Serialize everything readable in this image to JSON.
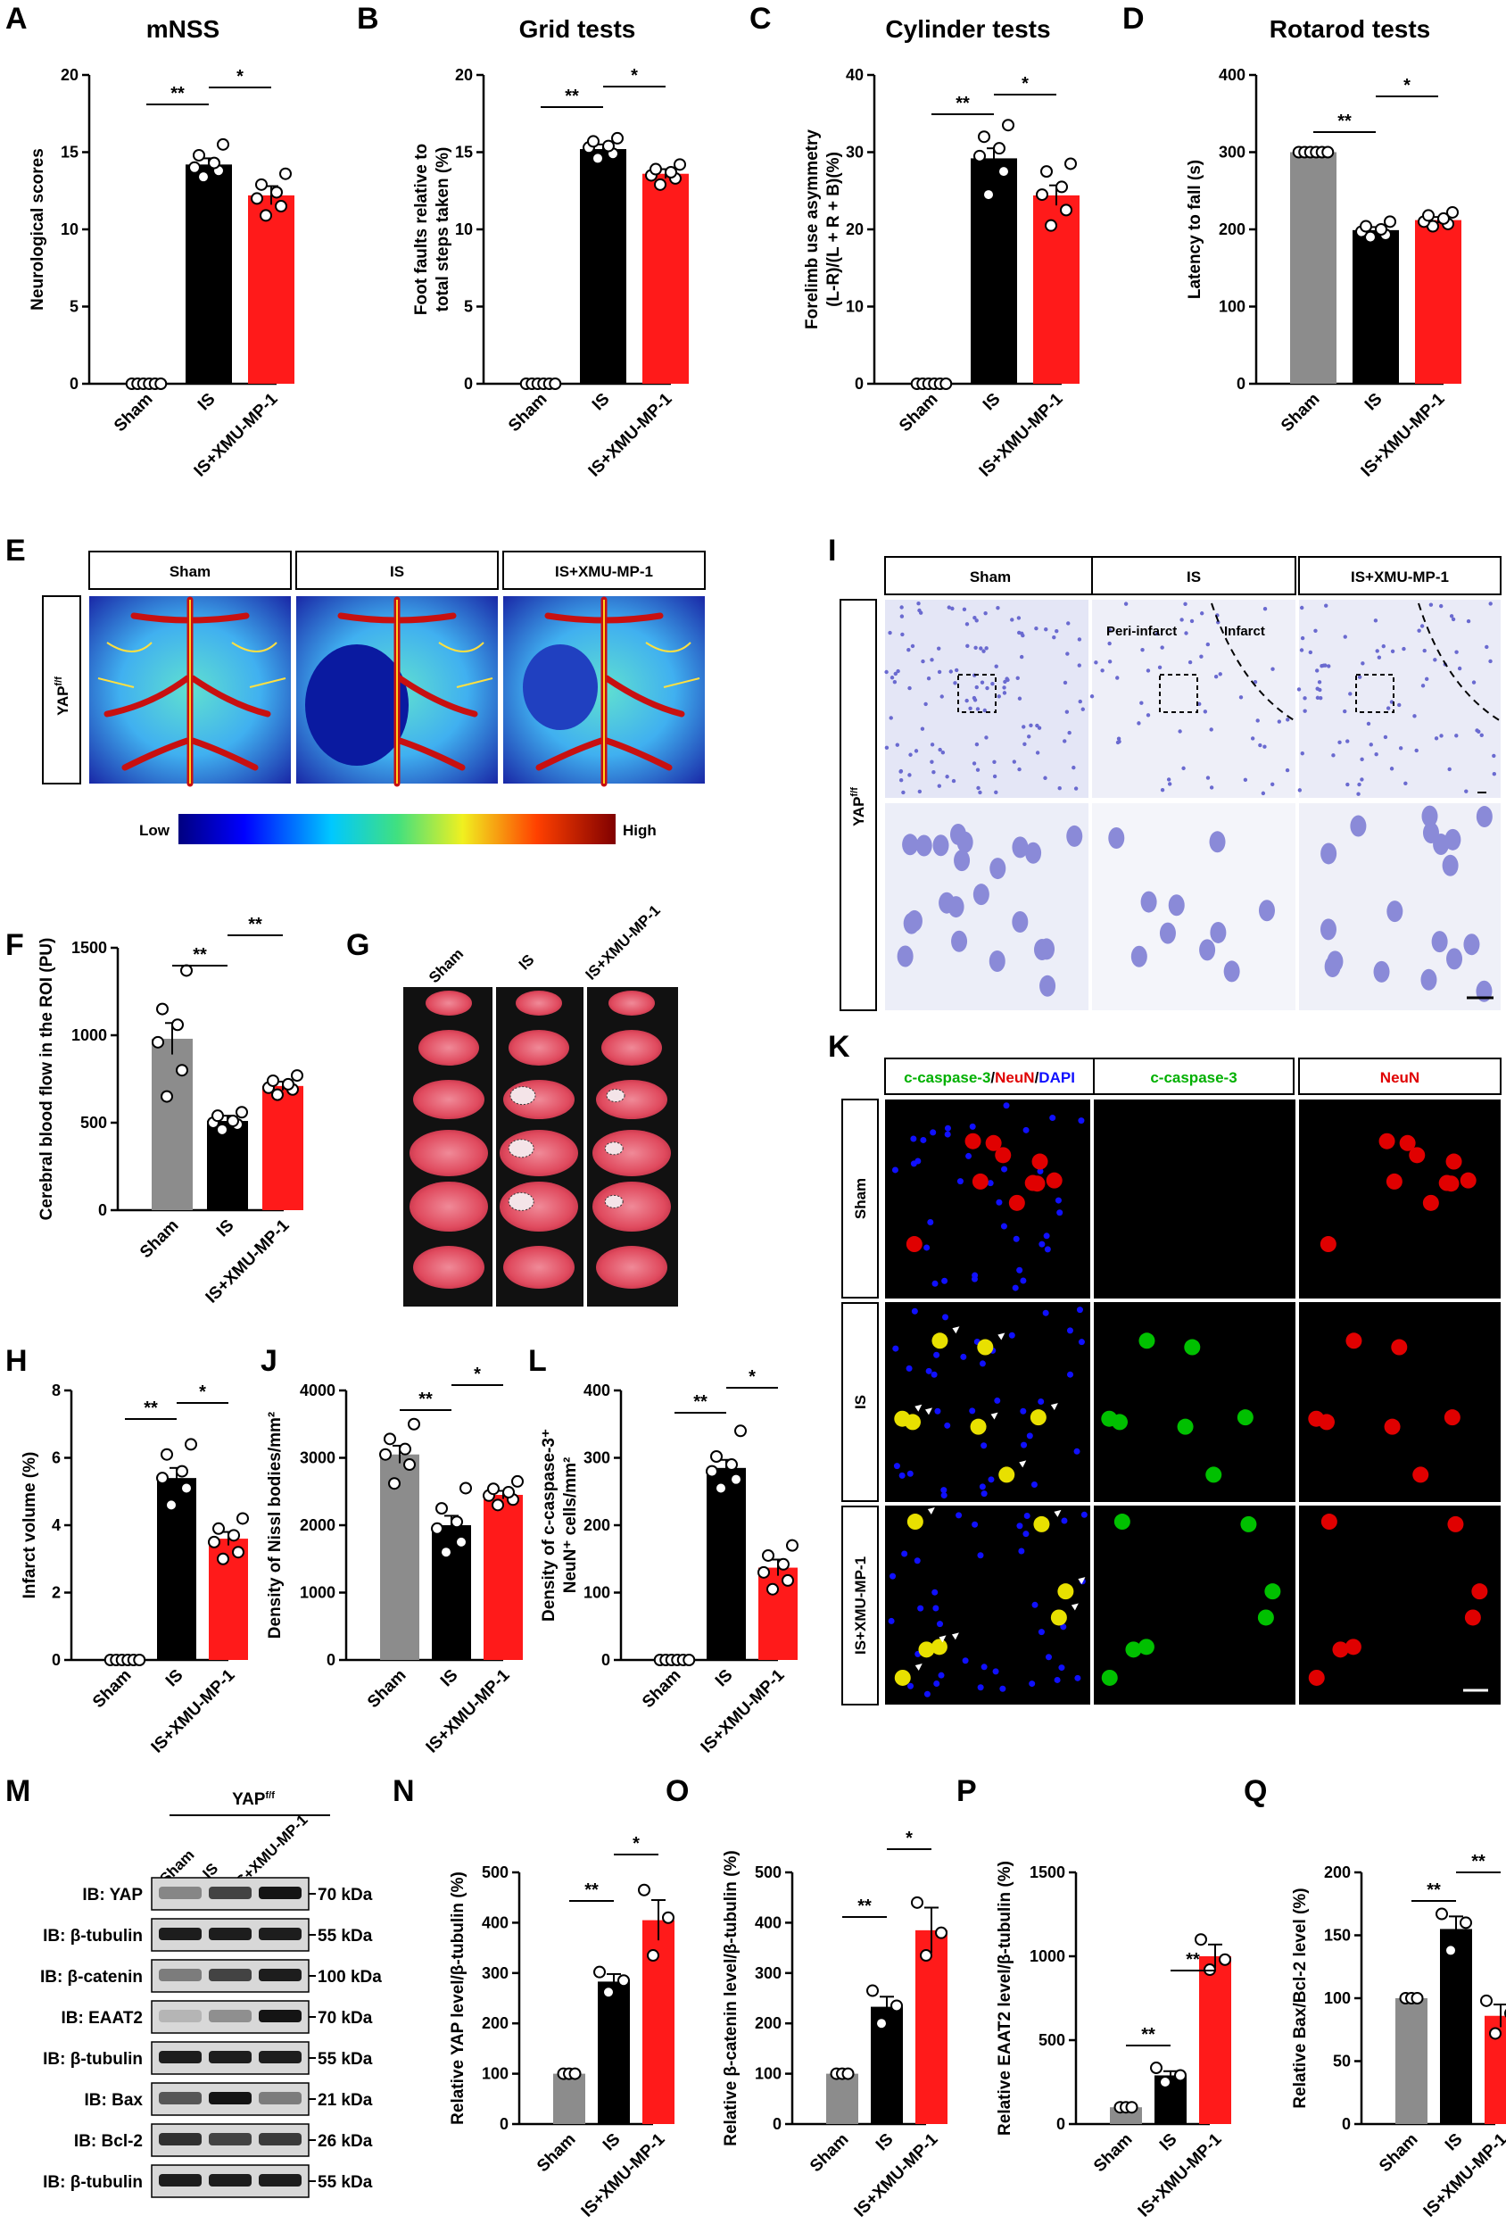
{
  "categories": [
    "Sham",
    "IS",
    "IS+XMU-MP-1"
  ],
  "colors": {
    "sham": "#8c8c8c",
    "is": "#000000",
    "xmu": "#ff1a1a",
    "c3": "#00c000",
    "neun": "#e00000",
    "dapi": "#1010ff"
  },
  "panels": {
    "A": "A",
    "B": "B",
    "C": "C",
    "D": "D",
    "E": "E",
    "F": "F",
    "G": "G",
    "H": "H",
    "I": "I",
    "J": "J",
    "K": "K",
    "L": "L",
    "M": "M",
    "N": "N",
    "O": "O",
    "P": "P",
    "Q": "Q"
  },
  "laser": {
    "headers": [
      "Sham",
      "IS",
      "IS+XMU-MP-1"
    ],
    "row_label": "YAP",
    "row_sup": "f/f",
    "scale_low": "Low",
    "scale_high": "High"
  },
  "ttc": {
    "headers": [
      "Sham",
      "IS",
      "IS+XMU-MP-1"
    ]
  },
  "nissl": {
    "headers": [
      "Sham",
      "IS",
      "IS+XMU-MP-1"
    ],
    "row_label": "YAP",
    "row_sup": "f/f",
    "peri": "Peri-infarct",
    "infarct": "Infarct"
  },
  "if_panel": {
    "h1a": "c-caspase-3",
    "h1b": "/",
    "h1c": "NeuN",
    "h1d": "/",
    "h1e": "DAPI",
    "h2": "c-caspase-3",
    "h3": "NeuN",
    "rows": [
      "Sham",
      "IS",
      "IS+XMU-MP-1"
    ]
  },
  "blot": {
    "group": "YAP",
    "group_sup": "f/f",
    "lanes": [
      "Sham",
      "IS",
      "IS+XMU-MP-1"
    ],
    "rows": [
      {
        "label": "IB: YAP",
        "kda": "70 kDa"
      },
      {
        "label": "IB: β-tubulin",
        "kda": "55 kDa"
      },
      {
        "label": "IB: β-catenin",
        "kda": "100 kDa"
      },
      {
        "label": "IB: EAAT2",
        "kda": "70 kDa"
      },
      {
        "label": "IB: β-tubulin",
        "kda": "55 kDa"
      },
      {
        "label": "IB: Bax",
        "kda": "21 kDa"
      },
      {
        "label": "IB: Bcl-2",
        "kda": "26 kDa"
      },
      {
        "label": "IB: β-tubulin",
        "kda": "55 kDa"
      }
    ]
  },
  "chart_data": [
    {
      "id": "A",
      "type": "bar",
      "title": "mNSS",
      "ylabel": [
        "Neurological scores"
      ],
      "categories": [
        "Sham",
        "IS",
        "IS+XMU-MP-1"
      ],
      "values": [
        0,
        14.2,
        12.2
      ],
      "errors": [
        0,
        0.4,
        0.6
      ],
      "ylim": [
        0,
        20
      ],
      "yticks": [
        0,
        5,
        10,
        15,
        20
      ],
      "points": [
        [
          0,
          0,
          0,
          0,
          0,
          0
        ],
        [
          13.4,
          13.8,
          14.0,
          14.3,
          14.8,
          15.5
        ],
        [
          10.9,
          11.5,
          12.0,
          12.4,
          12.9,
          13.6
        ]
      ],
      "sig": [
        "**",
        "*"
      ]
    },
    {
      "id": "B",
      "type": "bar",
      "title": "Grid tests",
      "ylabel": [
        "Foot faults relative to",
        "total steps taken (%)"
      ],
      "categories": [
        "Sham",
        "IS",
        "IS+XMU-MP-1"
      ],
      "values": [
        0,
        15.2,
        13.6
      ],
      "errors": [
        0,
        0.3,
        0.3
      ],
      "ylim": [
        0,
        20
      ],
      "yticks": [
        0,
        5,
        10,
        15,
        20
      ],
      "points": [
        [
          0,
          0,
          0,
          0,
          0,
          0
        ],
        [
          14.6,
          14.9,
          15.3,
          15.4,
          15.7,
          15.9
        ],
        [
          12.9,
          13.3,
          13.5,
          13.7,
          13.9,
          14.2
        ]
      ],
      "sig": [
        "**",
        "*"
      ]
    },
    {
      "id": "C",
      "type": "bar",
      "title": "Cylinder tests",
      "ylabel": [
        "Forelimb use asymmetry",
        "(L-R)/(L + R + B)(%)"
      ],
      "categories": [
        "Sham",
        "IS",
        "IS+XMU-MP-1"
      ],
      "values": [
        0,
        29.2,
        24.4
      ],
      "errors": [
        0,
        1.3,
        1.3
      ],
      "ylim": [
        0,
        40
      ],
      "yticks": [
        0,
        10,
        20,
        30,
        40
      ],
      "points": [
        [
          0,
          0,
          0,
          0,
          0,
          0
        ],
        [
          24.5,
          27.5,
          29.5,
          30.5,
          32.0,
          33.5
        ],
        [
          20.5,
          22.5,
          24.5,
          25.5,
          27.5,
          28.5
        ]
      ],
      "sig": [
        "**",
        "*"
      ]
    },
    {
      "id": "D",
      "type": "bar",
      "title": "Rotarod tests",
      "ylabel": [
        "Latency to fall (s)"
      ],
      "categories": [
        "Sham",
        "IS",
        "IS+XMU-MP-1"
      ],
      "values": [
        300,
        199,
        212
      ],
      "errors": [
        0,
        4,
        4
      ],
      "ylim": [
        0,
        400
      ],
      "yticks": [
        0,
        100,
        200,
        300,
        400
      ],
      "points": [
        [
          300,
          300,
          300,
          300,
          300,
          300
        ],
        [
          190,
          193,
          197,
          200,
          204,
          210
        ],
        [
          204,
          207,
          210,
          214,
          218,
          222
        ]
      ],
      "sig": [
        "**",
        "*"
      ]
    },
    {
      "id": "F",
      "type": "bar",
      "title": "",
      "ylabel": [
        "Cerebral blood flow in the ROI (PU)"
      ],
      "categories": [
        "Sham",
        "IS",
        "IS+XMU-MP-1"
      ],
      "values": [
        980,
        510,
        710
      ],
      "errors": [
        90,
        30,
        25
      ],
      "ylim": [
        0,
        1500
      ],
      "yticks": [
        0,
        500,
        1000,
        1500
      ],
      "points": [
        [
          650,
          800,
          960,
          1060,
          1150,
          1370
        ],
        [
          460,
          490,
          500,
          510,
          540,
          560
        ],
        [
          660,
          690,
          700,
          720,
          740,
          770
        ]
      ],
      "sig": [
        "**",
        "**"
      ]
    },
    {
      "id": "H",
      "type": "bar",
      "title": "",
      "ylabel": [
        "Infarct volume (%)"
      ],
      "categories": [
        "Sham",
        "IS",
        "IS+XMU-MP-1"
      ],
      "values": [
        0,
        5.4,
        3.6
      ],
      "errors": [
        0,
        0.3,
        0.2
      ],
      "ylim": [
        0,
        8
      ],
      "yticks": [
        0,
        2,
        4,
        6,
        8
      ],
      "points": [
        [
          0,
          0,
          0,
          0,
          0,
          0
        ],
        [
          4.6,
          5.1,
          5.4,
          5.6,
          6.1,
          6.4
        ],
        [
          3.0,
          3.2,
          3.5,
          3.7,
          3.9,
          4.2
        ]
      ],
      "sig": [
        "**",
        "*"
      ]
    },
    {
      "id": "J",
      "type": "bar",
      "title": "",
      "ylabel": [
        "Density of Nissl bodies/mm²"
      ],
      "categories": [
        "Sham",
        "IS",
        "IS+XMU-MP-1"
      ],
      "values": [
        3050,
        2000,
        2450
      ],
      "errors": [
        130,
        140,
        60
      ],
      "ylim": [
        0,
        4000
      ],
      "yticks": [
        0,
        1000,
        2000,
        3000,
        4000
      ],
      "points": [
        [
          2620,
          2900,
          3050,
          3130,
          3280,
          3500
        ],
        [
          1600,
          1750,
          1950,
          2050,
          2250,
          2550
        ],
        [
          2300,
          2380,
          2440,
          2490,
          2540,
          2650
        ]
      ],
      "sig": [
        "**",
        "*"
      ]
    },
    {
      "id": "L",
      "type": "bar",
      "title": "",
      "ylabel": [
        "Density of c-caspase-3⁺",
        "NeuN⁺ cells/mm²"
      ],
      "categories": [
        "Sham",
        "IS",
        "IS+XMU-MP-1"
      ],
      "values": [
        0,
        285,
        137
      ],
      "errors": [
        0,
        12,
        12
      ],
      "ylim": [
        0,
        400
      ],
      "yticks": [
        0,
        100,
        200,
        300,
        400
      ],
      "points": [
        [
          0,
          0,
          0,
          0,
          0,
          0
        ],
        [
          255,
          268,
          280,
          290,
          302,
          340
        ],
        [
          105,
          118,
          130,
          142,
          155,
          170
        ]
      ],
      "sig": [
        "**",
        "*"
      ]
    },
    {
      "id": "N",
      "type": "bar",
      "title": "",
      "ylabel": [
        "Relative YAP level/β-tubulin (%)"
      ],
      "categories": [
        "Sham",
        "IS",
        "IS+XMU-MP-1"
      ],
      "values": [
        100,
        283,
        405
      ],
      "errors": [
        0,
        15,
        40
      ],
      "ylim": [
        0,
        500
      ],
      "yticks": [
        0,
        100,
        200,
        300,
        400,
        500
      ],
      "points": [
        [
          100,
          100,
          100
        ],
        [
          262,
          285,
          302
        ],
        [
          335,
          410,
          465
        ]
      ],
      "sig": [
        "**",
        "*"
      ]
    },
    {
      "id": "O",
      "type": "bar",
      "title": "",
      "ylabel": [
        "Relative β-catenin level/β-tubulin (%)"
      ],
      "categories": [
        "Sham",
        "IS",
        "IS+XMU-MP-1"
      ],
      "values": [
        100,
        233,
        385
      ],
      "errors": [
        0,
        20,
        45
      ],
      "ylim": [
        0,
        500
      ],
      "yticks": [
        0,
        100,
        200,
        300,
        400,
        500
      ],
      "points": [
        [
          100,
          100,
          100
        ],
        [
          200,
          235,
          265
        ],
        [
          335,
          380,
          440
        ]
      ],
      "sig": [
        "**",
        "*"
      ]
    },
    {
      "id": "P",
      "type": "bar",
      "title": "",
      "ylabel": [
        "Relative EAAT2 level/β-tubulin (%)"
      ],
      "categories": [
        "Sham",
        "IS",
        "IS+XMU-MP-1"
      ],
      "values": [
        100,
        290,
        1000
      ],
      "errors": [
        0,
        25,
        70
      ],
      "ylim": [
        0,
        1500
      ],
      "yticks": [
        0,
        500,
        1000,
        1500
      ],
      "points": [
        [
          100,
          100,
          100
        ],
        [
          250,
          290,
          335
        ],
        [
          920,
          980,
          1100
        ]
      ],
      "sig": [
        "**",
        "**"
      ]
    },
    {
      "id": "Q",
      "type": "bar",
      "title": "",
      "ylabel": [
        "Relative Bax/Bcl-2 level (%)"
      ],
      "categories": [
        "Sham",
        "IS",
        "IS+XMU-MP-1"
      ],
      "values": [
        100,
        155,
        86
      ],
      "errors": [
        0,
        10,
        9
      ],
      "ylim": [
        0,
        200
      ],
      "yticks": [
        0,
        50,
        100,
        150,
        200
      ],
      "points": [
        [
          100,
          100,
          100
        ],
        [
          138,
          160,
          167
        ],
        [
          72,
          88,
          98
        ]
      ],
      "sig": [
        "**",
        "**"
      ]
    }
  ]
}
